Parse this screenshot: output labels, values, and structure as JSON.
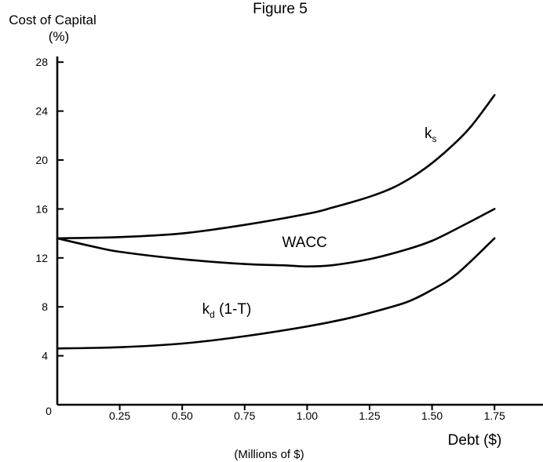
{
  "chart_data": {
    "type": "line",
    "title": "Figure 5",
    "ylabel": [
      "Cost of Capital",
      "(%)"
    ],
    "xlabel": "Debt ($)",
    "xlabel_note": "(Millions of $)",
    "origin_label": "0",
    "xlim": [
      0,
      1.95
    ],
    "ylim": [
      0,
      28
    ],
    "xticks": [
      0.25,
      0.5,
      0.75,
      1.0,
      1.25,
      1.5,
      1.75
    ],
    "xtick_labels": [
      "0.25",
      "0.50",
      "0.75",
      "1.00",
      "1.25",
      "1.50",
      "1.75"
    ],
    "yticks": [
      4,
      8,
      12,
      16,
      20,
      24,
      28
    ],
    "ytick_labels": [
      "4",
      "8",
      "12",
      "16",
      "20",
      "24",
      "28"
    ],
    "grid": false,
    "legend": "none",
    "series": [
      {
        "name": "ks",
        "label_main": "k",
        "label_sub": "s",
        "label_suffix": "",
        "label_at": [
          1.47,
          21.8
        ],
        "x": [
          0,
          0.25,
          0.5,
          0.75,
          1.0,
          1.1,
          1.25,
          1.35,
          1.45,
          1.55,
          1.65,
          1.75
        ],
        "y": [
          13.6,
          13.7,
          14.0,
          14.7,
          15.6,
          16.1,
          17.0,
          17.8,
          19.0,
          20.6,
          22.6,
          25.3
        ]
      },
      {
        "name": "WACC",
        "label_main": "WACC",
        "label_sub": "",
        "label_suffix": "",
        "label_at": [
          0.9,
          12.9
        ],
        "x": [
          0,
          0.15,
          0.25,
          0.5,
          0.75,
          0.9,
          1.0,
          1.1,
          1.25,
          1.4,
          1.5,
          1.6,
          1.75
        ],
        "y": [
          13.6,
          12.9,
          12.5,
          11.9,
          11.5,
          11.4,
          11.3,
          11.4,
          11.9,
          12.7,
          13.4,
          14.4,
          16.0
        ]
      },
      {
        "name": "kd (1-T)",
        "label_main": "k",
        "label_sub": "d",
        "label_suffix": " (1-T)",
        "label_at": [
          0.58,
          7.45
        ],
        "x": [
          0,
          0.25,
          0.5,
          0.75,
          1.0,
          1.15,
          1.25,
          1.4,
          1.5,
          1.6,
          1.75
        ],
        "y": [
          4.6,
          4.7,
          5.0,
          5.6,
          6.4,
          7.0,
          7.5,
          8.4,
          9.4,
          10.7,
          13.6
        ]
      }
    ]
  }
}
